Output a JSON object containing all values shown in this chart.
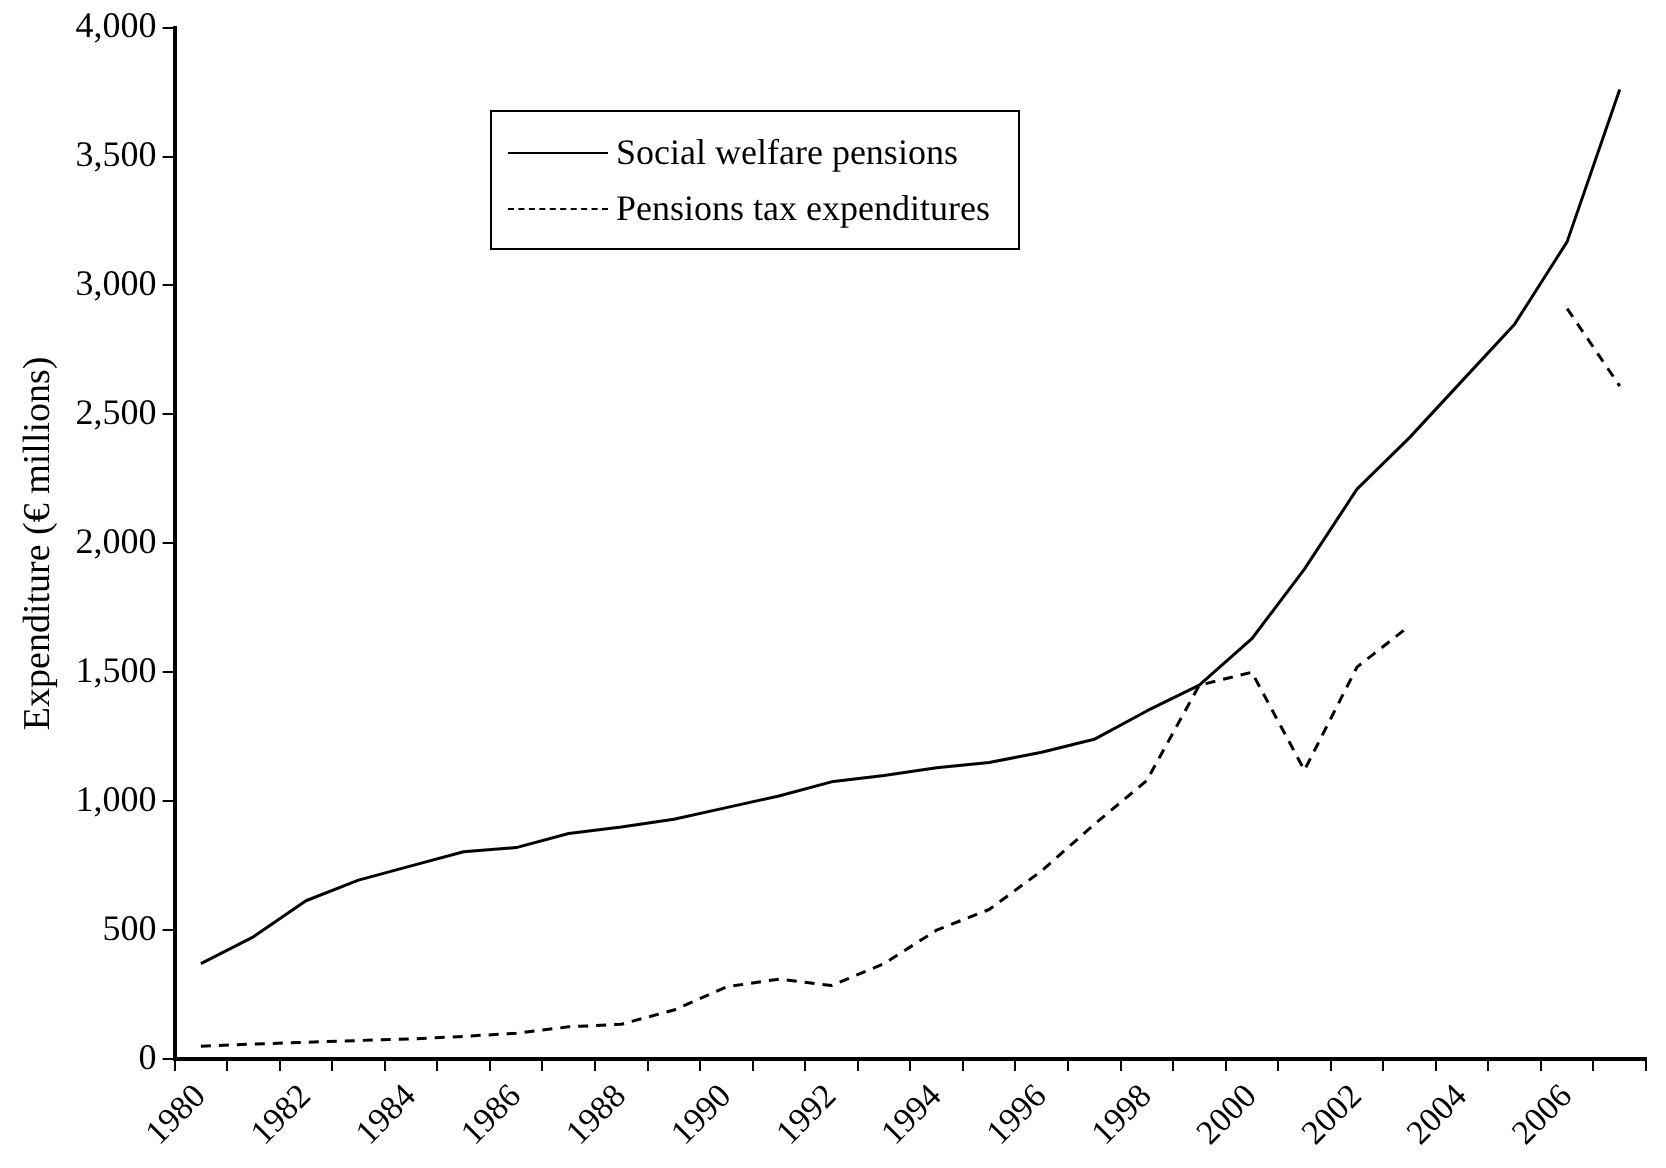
{
  "chart_data": {
    "type": "line",
    "ylabel": "Expenditure (€ millions)",
    "categories": [
      "1980",
      null,
      "1982",
      null,
      "1984",
      null,
      "1986",
      null,
      "1988",
      null,
      "1990",
      null,
      "1992",
      null,
      "1994",
      null,
      "1996",
      null,
      "1998",
      null,
      "2000",
      null,
      "2002",
      null,
      "2004",
      null,
      "2006",
      null
    ],
    "series": [
      {
        "name": "Social welfare pensions",
        "color": "#000000",
        "line_style": "solid",
        "values": [
          370,
          474,
          614,
          694,
          749,
          804,
          820,
          875,
          900,
          930,
          975,
          1020,
          1075,
          1100,
          1130,
          1150,
          1190,
          1240,
          1350,
          1450,
          1630,
          1900,
          2210,
          2410,
          2630,
          2850,
          3170,
          3760
        ]
      },
      {
        "name": "Pensions tax expenditures",
        "color": "#000000",
        "line_style": "dashed",
        "values": [
          50,
          58,
          65,
          72,
          78,
          88,
          100,
          125,
          135,
          190,
          280,
          310,
          285,
          370,
          500,
          580,
          730,
          910,
          1080,
          1450,
          1500,
          1120,
          1520,
          1680,
          null,
          null,
          2910,
          2610
        ]
      }
    ],
    "ylim": [
      0,
      4000
    ],
    "yticks": [
      0,
      500,
      {
        "value": 1000,
        "label": "1,000"
      },
      {
        "value": 1500,
        "label": "1,500"
      },
      {
        "value": 2000,
        "label": "2,000"
      },
      {
        "value": 2500,
        "label": "2,500"
      },
      {
        "value": 3000,
        "label": "3,000"
      },
      {
        "value": 3500,
        "label": "3,500"
      },
      {
        "value": 4000,
        "label": "4,000"
      }
    ],
    "grid": false,
    "legend": "top",
    "marker": "none"
  }
}
